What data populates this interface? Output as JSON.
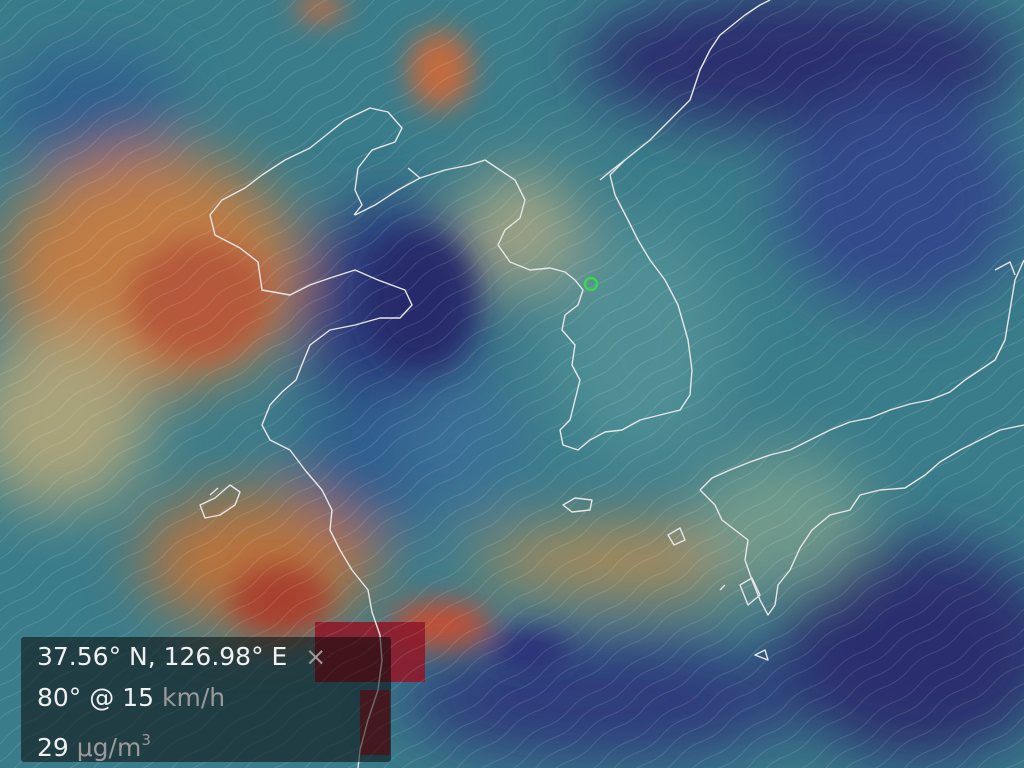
{
  "location": {
    "coordinates": "37.56° N, 126.98° E",
    "close_icon": "×"
  },
  "wind": {
    "direction_speed": "80° @ 15",
    "unit": "km/h"
  },
  "overlay": {
    "value": "29",
    "unit": "μg/m",
    "unit_exponent": "3"
  },
  "colors": {
    "low": "#2a3f7a",
    "mid": "#3c7f8e",
    "high": "#c8843f",
    "very_high": "#8e1a2a",
    "coastline": "#e6e6e6",
    "marker": "#39d84b"
  }
}
